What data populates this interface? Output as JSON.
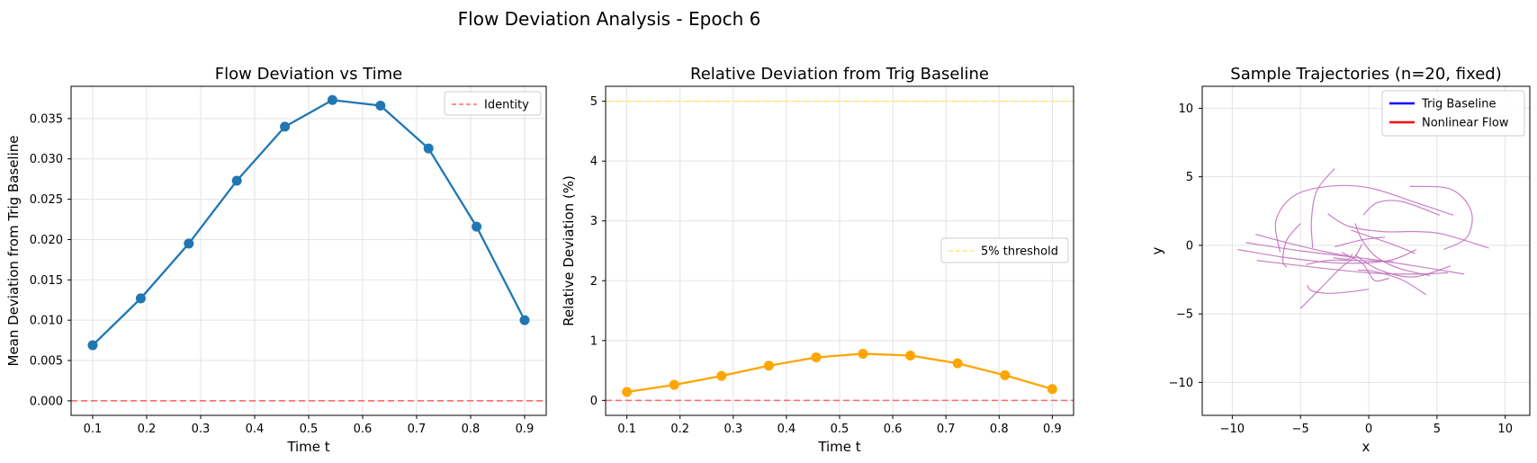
{
  "suptitle": "Flow Deviation Analysis - Epoch 6",
  "chart_data": [
    {
      "type": "line",
      "title": "Flow Deviation vs Time",
      "xlabel": "Time t",
      "ylabel": "Mean Deviation from Trig Baseline",
      "xlim": [
        0.06,
        0.94
      ],
      "ylim": [
        -0.0018,
        0.039
      ],
      "xticks": [
        "0.1",
        "0.2",
        "0.3",
        "0.4",
        "0.5",
        "0.6",
        "0.7",
        "0.8",
        "0.9"
      ],
      "yticks": [
        "0.000",
        "0.005",
        "0.010",
        "0.015",
        "0.020",
        "0.025",
        "0.030",
        "0.035"
      ],
      "grid": true,
      "legend_position": "top-right",
      "x": [
        0.1,
        0.189,
        0.278,
        0.367,
        0.456,
        0.544,
        0.633,
        0.722,
        0.811,
        0.9
      ],
      "series": [
        {
          "name": "",
          "color": "#1f77b4",
          "marker": "circle",
          "values": [
            0.0069,
            0.0127,
            0.0195,
            0.0273,
            0.034,
            0.0373,
            0.0366,
            0.0313,
            0.0216,
            0.01
          ]
        }
      ],
      "reference_lines": [
        {
          "name": "Identity",
          "y": 0,
          "color": "#ff6b6b",
          "style": "dashed"
        }
      ]
    },
    {
      "type": "line",
      "title": "Relative Deviation from Trig Baseline",
      "xlabel": "Time t",
      "ylabel": "Relative Deviation (%)",
      "xlim": [
        0.06,
        0.94
      ],
      "ylim": [
        -0.25,
        5.25
      ],
      "xticks": [
        "0.1",
        "0.2",
        "0.3",
        "0.4",
        "0.5",
        "0.6",
        "0.7",
        "0.8",
        "0.9"
      ],
      "yticks": [
        "0",
        "1",
        "2",
        "3",
        "4",
        "5"
      ],
      "grid": true,
      "legend_position": "center-right",
      "x": [
        0.1,
        0.189,
        0.278,
        0.367,
        0.456,
        0.544,
        0.633,
        0.722,
        0.811,
        0.9
      ],
      "series": [
        {
          "name": "",
          "color": "#ffa500",
          "marker": "circle",
          "values": [
            0.14,
            0.26,
            0.41,
            0.58,
            0.72,
            0.78,
            0.75,
            0.62,
            0.42,
            0.19
          ]
        }
      ],
      "reference_lines": [
        {
          "name": "5% threshold",
          "y": 5,
          "color": "#ffe86b",
          "style": "dashed"
        },
        {
          "name": "",
          "y": 0,
          "color": "#ff6b6b",
          "style": "dashed"
        }
      ]
    },
    {
      "type": "line",
      "title": "Sample Trajectories (n=20, fixed)",
      "xlabel": "x",
      "ylabel": "y",
      "xlim": [
        -12.2,
        11.8
      ],
      "ylim": [
        -12.4,
        11.6
      ],
      "xticks": [
        "−10",
        "−5",
        "0",
        "5",
        "10"
      ],
      "yticks": [
        "−10",
        "−5",
        "0",
        "5",
        "10"
      ],
      "grid": true,
      "legend_position": "top-right",
      "legend": [
        {
          "name": "Trig Baseline",
          "color": "#0000ff"
        },
        {
          "name": "Nonlinear Flow",
          "color": "#ff0000"
        }
      ],
      "trajectory_color": "#c06bb8",
      "series": [
        {
          "name": "",
          "x": [
            -9.6,
            -6,
            -2,
            1.5,
            3.5
          ],
          "y": [
            -0.3,
            -0.9,
            -1.3,
            -1.1,
            -0.3
          ]
        },
        {
          "name": "",
          "x": [
            -8.2,
            -4,
            0,
            3.5,
            5.8
          ],
          "y": [
            -1.1,
            -1.6,
            -2.0,
            -2.1,
            -2.0
          ]
        },
        {
          "name": "",
          "x": [
            -9,
            -5,
            0,
            4,
            7
          ],
          "y": [
            0.2,
            -0.4,
            -1.0,
            -1.6,
            -2.1
          ]
        },
        {
          "name": "",
          "x": [
            -6.5,
            -6.8,
            -5.5,
            -3,
            0,
            3.5,
            6.2
          ],
          "y": [
            -0.5,
            1.8,
            3.6,
            4.3,
            4.2,
            3.1,
            2.2
          ]
        },
        {
          "name": "",
          "x": [
            3,
            6,
            7.5,
            7.2,
            5.5
          ],
          "y": [
            4.3,
            4.1,
            2.5,
            0.6,
            -0.3
          ]
        },
        {
          "name": "",
          "x": [
            -3,
            -1.5,
            1,
            3.5,
            5.5,
            8.8
          ],
          "y": [
            2.3,
            1.4,
            1.0,
            1.0,
            0.8,
            -0.2
          ]
        },
        {
          "name": "",
          "x": [
            -1,
            -0.5,
            0.5,
            2,
            3.5,
            4.5
          ],
          "y": [
            1.6,
            0.4,
            -0.8,
            -1.6,
            -2.0,
            -2.2
          ]
        },
        {
          "name": "",
          "x": [
            -2,
            -0.5,
            0,
            0.5,
            1.5
          ],
          "y": [
            -0.5,
            -1.3,
            -2.0,
            -2.6,
            -2.4
          ]
        },
        {
          "name": "",
          "x": [
            -5,
            -3.5,
            -2,
            -1,
            -0.5
          ],
          "y": [
            -4.6,
            -3.1,
            -1.6,
            -0.8,
            0.1
          ]
        },
        {
          "name": "",
          "x": [
            -4.5,
            -4.2,
            -3,
            -1.5,
            0
          ],
          "y": [
            -2.9,
            -3.3,
            -3.5,
            -3.4,
            -3.2
          ]
        },
        {
          "name": "",
          "x": [
            -6,
            -6.3,
            -6.0,
            -5.0
          ],
          "y": [
            -1.6,
            -1.1,
            0.4,
            1.6
          ]
        },
        {
          "name": "",
          "x": [
            -4.1,
            -4.2,
            -3.8,
            -2.5
          ],
          "y": [
            -0.2,
            1.8,
            4.0,
            5.6
          ]
        },
        {
          "name": "",
          "x": [
            -1,
            0.8,
            3.3,
            6
          ],
          "y": [
            -0.7,
            -1.8,
            -2.3,
            -1.5
          ]
        },
        {
          "name": "",
          "x": [
            -0.4,
            0.6,
            2.4,
            5.2
          ],
          "y": [
            2.2,
            3.1,
            3.2,
            2.2
          ]
        },
        {
          "name": "",
          "x": [
            -1.3,
            0.5,
            2.2,
            3.4
          ],
          "y": [
            1.1,
            0.5,
            -0.1,
            -0.6
          ]
        },
        {
          "name": "",
          "x": [
            -8.3,
            -6,
            -3.5,
            -1.5
          ],
          "y": [
            0.8,
            0.2,
            -0.4,
            -0.8
          ]
        },
        {
          "name": "",
          "x": [
            -4.6,
            -3,
            -1,
            1.8
          ],
          "y": [
            -1.4,
            -1.1,
            -1.1,
            -1.2
          ]
        },
        {
          "name": "",
          "x": [
            -2.5,
            -0.5,
            1.2
          ],
          "y": [
            -0.1,
            0.4,
            0.6
          ]
        },
        {
          "name": "",
          "x": [
            -2.6,
            -1.5,
            -1.2
          ],
          "y": [
            -0.9,
            -1.0,
            -0.6
          ]
        },
        {
          "name": "",
          "x": [
            -0.8,
            0.4,
            2.4,
            4.2
          ],
          "y": [
            -1.8,
            -1.9,
            -2.5,
            -3.6
          ]
        }
      ]
    }
  ]
}
